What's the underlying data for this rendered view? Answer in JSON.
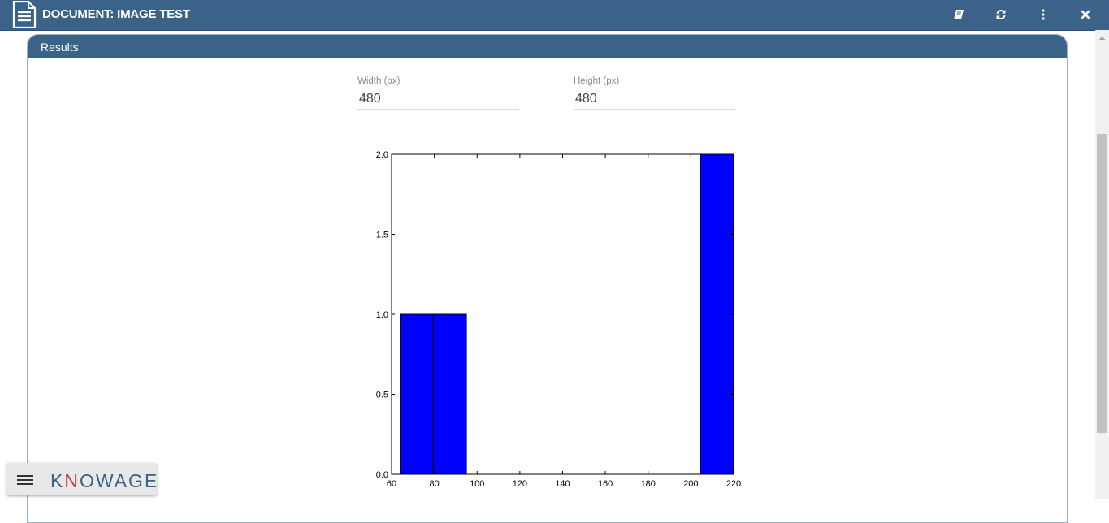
{
  "window": {
    "title": "DOCUMENT: IMAGE TEST"
  },
  "toolbar": {
    "icons": [
      "book-icon",
      "refresh-icon",
      "more-vertical-icon",
      "close-icon"
    ]
  },
  "panel": {
    "title": "Results"
  },
  "fields": {
    "width": {
      "label": "Width (px)",
      "value": "480"
    },
    "height": {
      "label": "Height (px)",
      "value": "480"
    }
  },
  "colors": {
    "header": "#3b6289",
    "bar": "#0000ff",
    "logo_accent": "#c03a4c"
  },
  "logo": {
    "text_pre": "K",
    "text_accent": "N",
    "text_post": "OWAGE"
  },
  "chart_data": {
    "type": "bar",
    "title": "",
    "xlabel": "",
    "ylabel": "",
    "xlim": [
      60,
      220
    ],
    "ylim": [
      0.0,
      2.0
    ],
    "xticks": [
      "60",
      "80",
      "100",
      "120",
      "140",
      "160",
      "180",
      "200",
      "220"
    ],
    "yticks": [
      "0.0",
      "0.5",
      "1.0",
      "1.5",
      "2.0"
    ],
    "bins": [
      {
        "start": 64,
        "end": 79.5,
        "value": 1
      },
      {
        "start": 79.5,
        "end": 95,
        "value": 1
      },
      {
        "start": 204.5,
        "end": 220,
        "value": 2
      }
    ],
    "grid": false,
    "legend": false
  }
}
